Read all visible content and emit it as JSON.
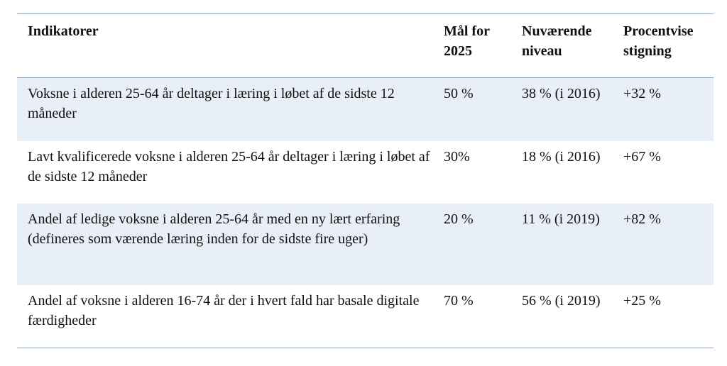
{
  "table": {
    "headers": [
      "Indikatorer",
      "Mål for 2025",
      "Nuværende niveau",
      "Procentvise stigning"
    ],
    "rows": [
      {
        "indicator": "Voksne i alderen 25-64 år deltager i læring i løbet af de sidste 12 måneder",
        "target": "50 %",
        "current": "38 % (i 2016)",
        "increase": "+32 %"
      },
      {
        "indicator": "Lavt kvalificerede voksne i alderen 25-64 år deltager i læring i løbet af de sidste 12 måneder",
        "target": "30%",
        "current": "18 % (i 2016)",
        "increase": "+67 %"
      },
      {
        "indicator": "Andel af ledige voksne i alderen 25-64 år med en ny lært erfaring (defineres som værende læring inden for de sidste fire uger)",
        "target": "20 %",
        "current": "11 % (i 2019)",
        "increase": "+82 %"
      },
      {
        "indicator": "Andel af voksne i alderen 16-74 år der i hvert fald har basale digitale færdigheder",
        "target": "70 %",
        "current": "56 % (i 2019)",
        "increase": "+25 %"
      }
    ]
  }
}
